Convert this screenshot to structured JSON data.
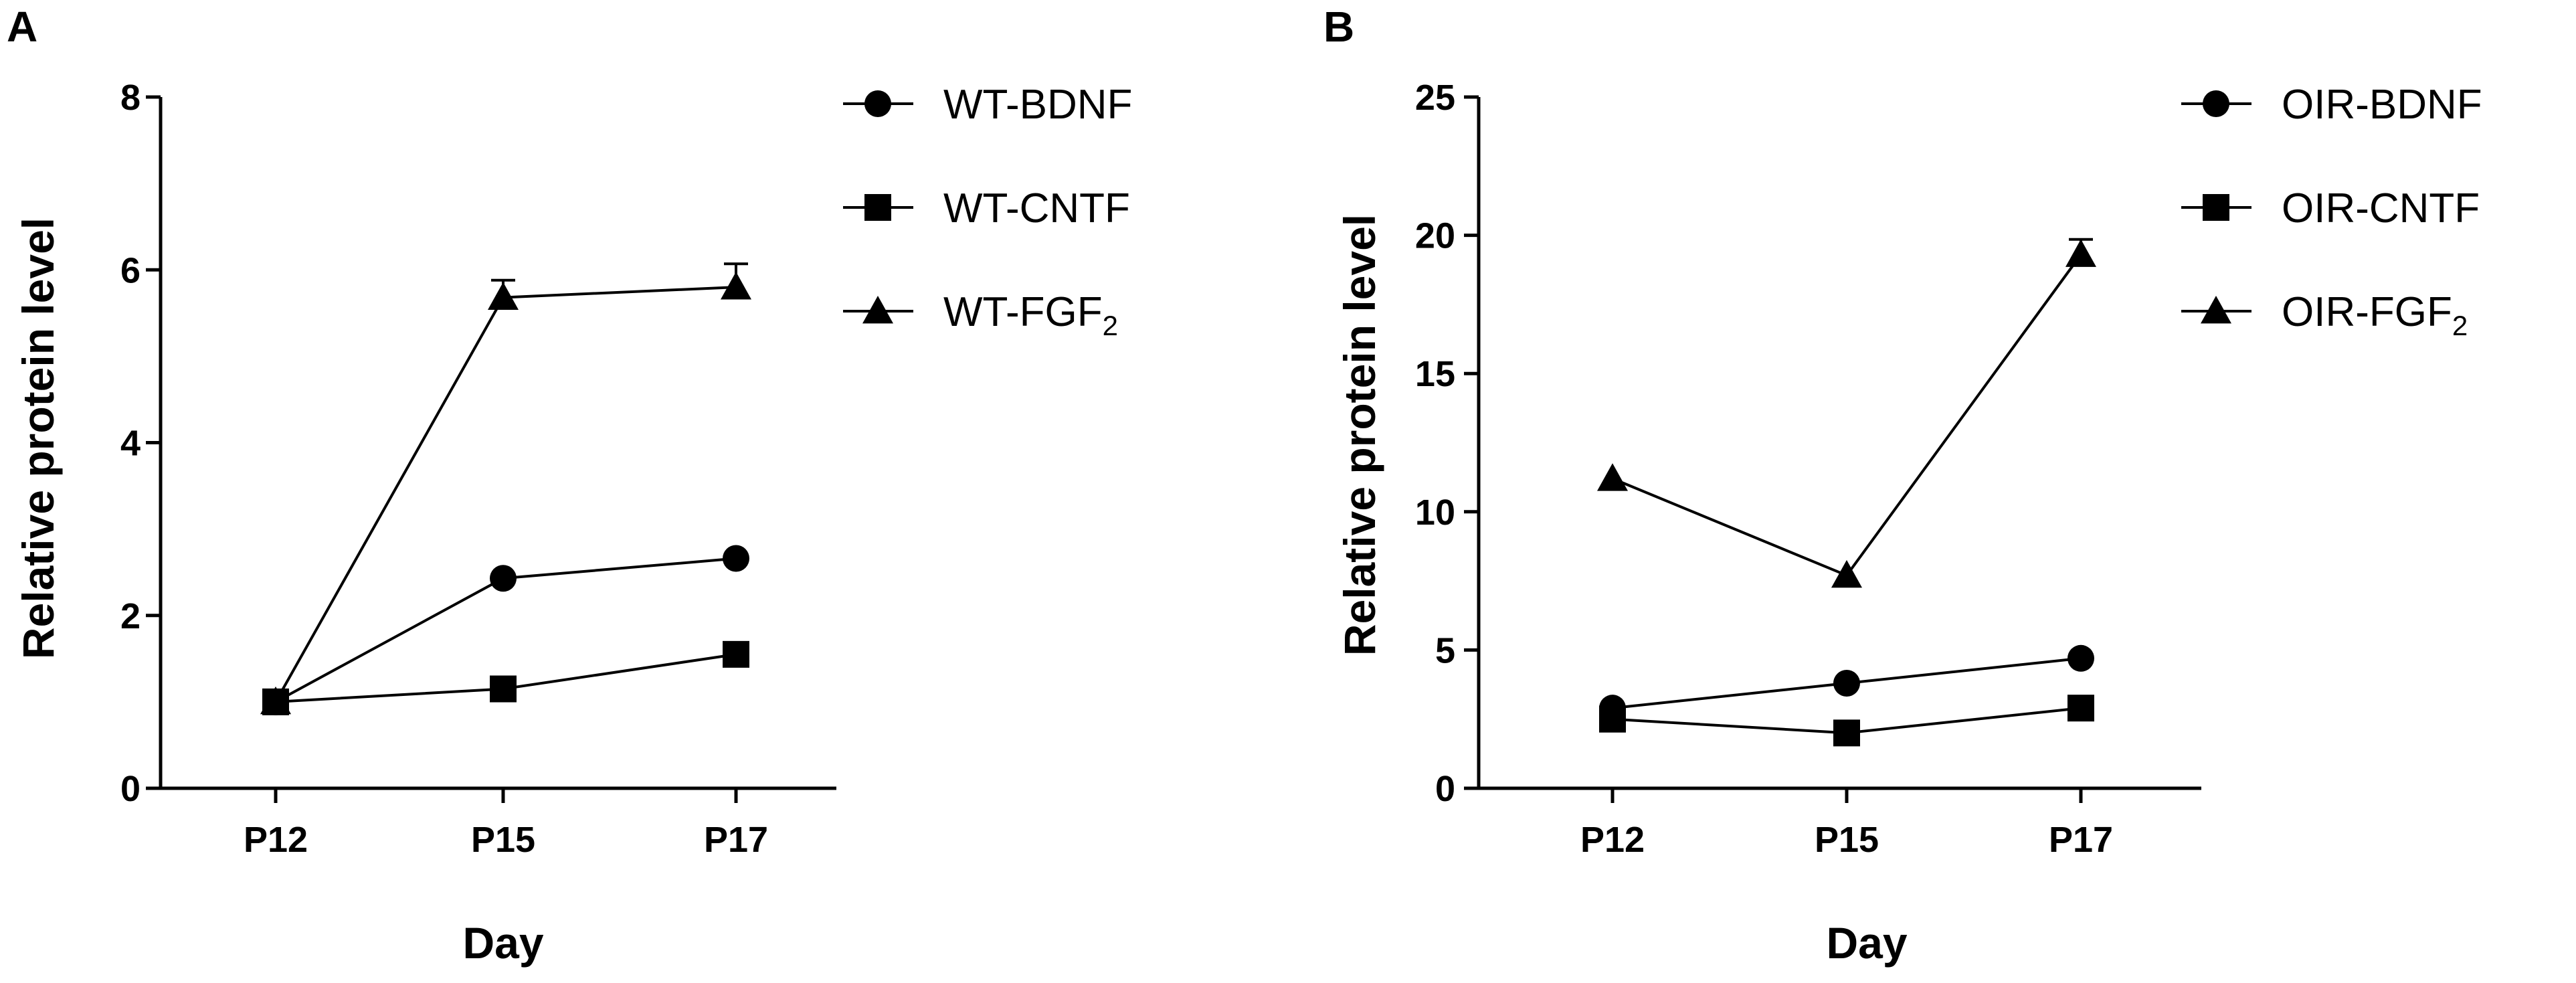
{
  "chart_data": [
    {
      "panel": "A",
      "type": "line",
      "categories": [
        "P12",
        "P15",
        "P17"
      ],
      "xlabel": "Day",
      "ylabel": "Relative protein level",
      "ylim": [
        0,
        8
      ],
      "yticks": [
        0,
        2,
        4,
        6,
        8
      ],
      "legend_position": "top-right",
      "series": [
        {
          "name": "WT-BDNF",
          "name_base": "WT-BDNF",
          "name_sub": "",
          "marker": "circle",
          "values": [
            1.0,
            2.43,
            2.66
          ],
          "errors": [
            0,
            0,
            0
          ]
        },
        {
          "name": "WT-CNTF",
          "name_base": "WT-CNTF",
          "name_sub": "",
          "marker": "square",
          "values": [
            1.0,
            1.15,
            1.55
          ],
          "errors": [
            0,
            0,
            0
          ]
        },
        {
          "name": "WT-FGF2",
          "name_base": "WT-FGF",
          "name_sub": "2",
          "marker": "triangle",
          "values": [
            1.0,
            5.68,
            5.8
          ],
          "errors": [
            0,
            0.2,
            0.27
          ]
        }
      ]
    },
    {
      "panel": "B",
      "type": "line",
      "categories": [
        "P12",
        "P15",
        "P17"
      ],
      "xlabel": "Day",
      "ylabel": "Relative protein level",
      "ylim": [
        0,
        25
      ],
      "yticks": [
        0,
        5,
        10,
        15,
        20,
        25
      ],
      "legend_position": "top-right",
      "series": [
        {
          "name": "OIR-BDNF",
          "name_base": "OIR-BDNF",
          "name_sub": "",
          "marker": "circle",
          "values": [
            2.9,
            3.8,
            4.7
          ],
          "errors": [
            0,
            0,
            0
          ]
        },
        {
          "name": "OIR-CNTF",
          "name_base": "OIR-CNTF",
          "name_sub": "",
          "marker": "square",
          "values": [
            2.5,
            2.0,
            2.9
          ],
          "errors": [
            0,
            0,
            0
          ]
        },
        {
          "name": "OIR-FGF2",
          "name_base": "OIR-FGF",
          "name_sub": "2",
          "marker": "triangle",
          "values": [
            11.2,
            7.7,
            19.3
          ],
          "errors": [
            0,
            0,
            0.55
          ]
        }
      ]
    }
  ]
}
